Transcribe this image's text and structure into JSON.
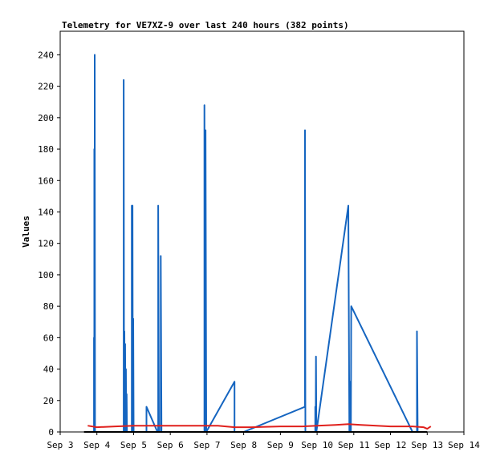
{
  "chart_data": {
    "type": "line",
    "title": "Telemetry for VE7XZ-9 over last 240 hours (382 points)",
    "ylabel": "Values",
    "xlabel": "",
    "x_unit": "day of September",
    "xlim": [
      3,
      14
    ],
    "ylim": [
      0,
      255
    ],
    "x_ticks": [
      {
        "x": 3,
        "label": "Sep 3"
      },
      {
        "x": 4,
        "label": "Sep 4"
      },
      {
        "x": 5,
        "label": "Sep 5"
      },
      {
        "x": 6,
        "label": "Sep 6"
      },
      {
        "x": 7,
        "label": "Sep 7"
      },
      {
        "x": 8,
        "label": "Sep 8"
      },
      {
        "x": 9,
        "label": "Sep 9"
      },
      {
        "x": 10,
        "label": "Sep 10"
      },
      {
        "x": 11,
        "label": "Sep 11"
      },
      {
        "x": 12,
        "label": "Sep 12"
      },
      {
        "x": 13,
        "label": "Sep 13"
      },
      {
        "x": 14,
        "label": "Sep 14"
      }
    ],
    "y_ticks": [
      0,
      20,
      40,
      60,
      80,
      100,
      120,
      140,
      160,
      180,
      200,
      220,
      240
    ],
    "grid": false,
    "series": [
      {
        "color": "#1565c0",
        "points": [
          [
            3.92,
            0
          ],
          [
            3.92,
            60
          ],
          [
            3.93,
            0
          ],
          [
            3.93,
            180
          ],
          [
            3.94,
            0
          ],
          [
            3.94,
            240
          ],
          [
            3.95,
            0
          ],
          [
            4.73,
            0
          ],
          [
            4.73,
            224
          ],
          [
            4.74,
            0
          ],
          [
            4.75,
            64
          ],
          [
            4.76,
            0
          ],
          [
            4.77,
            56
          ],
          [
            4.78,
            0
          ],
          [
            4.79,
            40
          ],
          [
            4.8,
            0
          ],
          [
            4.81,
            24
          ],
          [
            4.82,
            0
          ],
          [
            4.95,
            0
          ],
          [
            4.95,
            144
          ],
          [
            4.96,
            0
          ],
          [
            4.97,
            144
          ],
          [
            4.98,
            0
          ],
          [
            4.99,
            72
          ],
          [
            5.0,
            0
          ],
          [
            5.35,
            0
          ],
          [
            5.35,
            16
          ],
          [
            5.65,
            0
          ],
          [
            5.67,
            0
          ],
          [
            5.67,
            144
          ],
          [
            5.69,
            0
          ],
          [
            5.74,
            0
          ],
          [
            5.74,
            112
          ],
          [
            5.76,
            0
          ],
          [
            6.93,
            0
          ],
          [
            6.93,
            208
          ],
          [
            6.95,
            0
          ],
          [
            6.96,
            192
          ],
          [
            6.98,
            0
          ],
          [
            7.75,
            32
          ],
          [
            7.75,
            0
          ],
          [
            8.0,
            0
          ],
          [
            9.67,
            16
          ],
          [
            9.67,
            192
          ],
          [
            9.68,
            0
          ],
          [
            9.95,
            0
          ],
          [
            9.95,
            16
          ],
          [
            9.96,
            0
          ],
          [
            9.97,
            48
          ],
          [
            9.98,
            0
          ],
          [
            10.85,
            144
          ],
          [
            10.88,
            0
          ],
          [
            10.9,
            0
          ],
          [
            10.9,
            32
          ],
          [
            10.92,
            0
          ],
          [
            10.93,
            80
          ],
          [
            12.6,
            0
          ],
          [
            12.72,
            0
          ],
          [
            12.72,
            64
          ],
          [
            12.74,
            0
          ]
        ]
      },
      {
        "color": "#e0201c",
        "points": [
          [
            3.75,
            4
          ],
          [
            4.0,
            3
          ],
          [
            4.5,
            3.5
          ],
          [
            5.0,
            4
          ],
          [
            5.5,
            4
          ],
          [
            6.0,
            4
          ],
          [
            6.5,
            4
          ],
          [
            7.0,
            4
          ],
          [
            7.3,
            4
          ],
          [
            7.75,
            3
          ],
          [
            8.2,
            3
          ],
          [
            9.0,
            3.5
          ],
          [
            9.6,
            3.5
          ],
          [
            10.0,
            4
          ],
          [
            10.5,
            4.5
          ],
          [
            10.85,
            5
          ],
          [
            11.2,
            4.5
          ],
          [
            12.0,
            3.5
          ],
          [
            12.6,
            3.5
          ],
          [
            12.9,
            3
          ],
          [
            13.0,
            2
          ],
          [
            13.1,
            3.5
          ]
        ]
      },
      {
        "color": "#000000",
        "points": [
          [
            3.65,
            0
          ],
          [
            13.0,
            0
          ]
        ]
      }
    ]
  }
}
